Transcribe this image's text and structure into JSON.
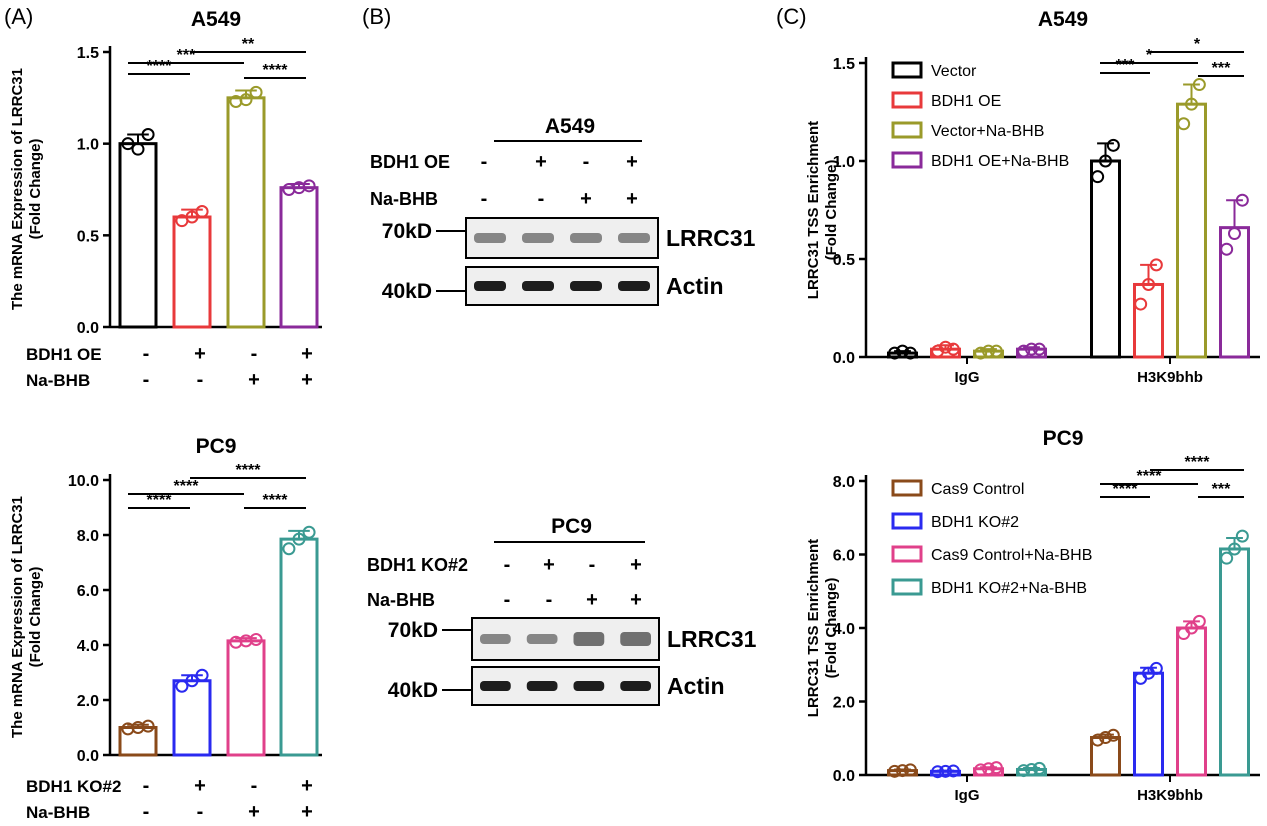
{
  "panel_labels": {
    "a": "(A)",
    "b": "(B)",
    "c": "(C)"
  },
  "chart_data": [
    {
      "id": "A-top",
      "type": "bar",
      "title": "A549",
      "ylabel": "The mRNA Expression of LRRC31 (Fold Change)",
      "ylim": [
        0,
        1.5
      ],
      "yticks": [
        "0.0",
        "0.5",
        "1.0",
        "1.5"
      ],
      "colors": [
        "#000000",
        "#e8393b",
        "#9a9a2a",
        "#8a2a9a"
      ],
      "values": [
        1.0,
        0.6,
        1.25,
        0.76
      ],
      "errors": [
        0.05,
        0.04,
        0.04,
        0.02
      ],
      "points": [
        [
          1.0,
          0.97,
          1.05
        ],
        [
          0.58,
          0.6,
          0.63
        ],
        [
          1.23,
          1.24,
          1.28
        ],
        [
          0.75,
          0.76,
          0.77
        ]
      ],
      "design": [
        {
          "label": "BDH1 OE",
          "signs": [
            "-",
            "+",
            "-",
            "+"
          ]
        },
        {
          "label": "Na-BHB",
          "signs": [
            "-",
            "-",
            "+",
            "+"
          ]
        }
      ],
      "significance": [
        {
          "from": 1,
          "to": 2,
          "label": "****"
        },
        {
          "from": 1,
          "to": 3,
          "label": "***"
        },
        {
          "from": 2,
          "to": 4,
          "label": "**"
        },
        {
          "from": 3,
          "to": 4,
          "label": "****"
        }
      ]
    },
    {
      "id": "A-bottom",
      "type": "bar",
      "title": "PC9",
      "ylabel": "The mRNA Expression of LRRC31 (Fold Change)",
      "ylim": [
        0,
        10
      ],
      "yticks": [
        "0.0",
        "2.0",
        "4.0",
        "6.0",
        "8.0",
        "10.0"
      ],
      "colors": [
        "#8a4a1a",
        "#2a2af0",
        "#e0408a",
        "#3a9a92"
      ],
      "values": [
        1.0,
        2.7,
        4.15,
        7.85
      ],
      "errors": [
        0.1,
        0.2,
        0.1,
        0.3
      ],
      "points": [
        [
          0.95,
          1.0,
          1.05
        ],
        [
          2.5,
          2.7,
          2.9
        ],
        [
          4.1,
          4.15,
          4.2
        ],
        [
          7.5,
          7.85,
          8.1
        ]
      ],
      "design": [
        {
          "label": "BDH1 KO#2",
          "signs": [
            "-",
            "+",
            "-",
            "+"
          ]
        },
        {
          "label": "Na-BHB",
          "signs": [
            "-",
            "-",
            "+",
            "+"
          ]
        }
      ],
      "significance": [
        {
          "from": 1,
          "to": 2,
          "label": "****"
        },
        {
          "from": 1,
          "to": 3,
          "label": "****"
        },
        {
          "from": 2,
          "to": 4,
          "label": "****"
        },
        {
          "from": 3,
          "to": 4,
          "label": "****"
        }
      ]
    },
    {
      "id": "C-top",
      "type": "bar",
      "title": "A549",
      "ylabel": "LRRC31 TSS Enrichment (Fold Change)",
      "ylim": [
        0,
        1.5
      ],
      "yticks": [
        "0.0",
        "0.5",
        "1.0",
        "1.5"
      ],
      "categories": [
        "IgG",
        "H3K9bhb"
      ],
      "colors": [
        "#000000",
        "#e8393b",
        "#9a9a2a",
        "#8a2a9a"
      ],
      "series": [
        {
          "name": "Vector",
          "values": [
            0.02,
            1.0
          ],
          "errors": [
            0.01,
            0.09
          ],
          "points": [
            [
              0.02,
              0.03,
              0.02
            ],
            [
              0.92,
              1.0,
              1.08
            ]
          ]
        },
        {
          "name": "BDH1 OE",
          "values": [
            0.04,
            0.37
          ],
          "errors": [
            0.02,
            0.1
          ],
          "points": [
            [
              0.03,
              0.05,
              0.04
            ],
            [
              0.27,
              0.37,
              0.47
            ]
          ]
        },
        {
          "name": "Vector+Na-BHB",
          "values": [
            0.03,
            1.29
          ],
          "errors": [
            0.01,
            0.1
          ],
          "points": [
            [
              0.02,
              0.03,
              0.03
            ],
            [
              1.19,
              1.29,
              1.39
            ]
          ]
        },
        {
          "name": "BDH1 OE+Na-BHB",
          "values": [
            0.04,
            0.66
          ],
          "errors": [
            0.01,
            0.14
          ],
          "points": [
            [
              0.03,
              0.04,
              0.04
            ],
            [
              0.55,
              0.63,
              0.8
            ]
          ]
        }
      ],
      "significance": [
        {
          "from": 1,
          "to": 2,
          "label": "***"
        },
        {
          "from": 1,
          "to": 3,
          "label": "*"
        },
        {
          "from": 2,
          "to": 4,
          "label": "*"
        },
        {
          "from": 3,
          "to": 4,
          "label": "***"
        }
      ]
    },
    {
      "id": "C-bottom",
      "type": "bar",
      "title": "PC9",
      "ylabel": "LRRC31 TSS Enrichment (Fold Change)",
      "ylim": [
        0,
        8
      ],
      "yticks": [
        "0.0",
        "2.0",
        "4.0",
        "6.0",
        "8.0"
      ],
      "categories": [
        "IgG",
        "H3K9bhb"
      ],
      "colors": [
        "#8a4a1a",
        "#2a2af0",
        "#e0408a",
        "#3a9a92"
      ],
      "series": [
        {
          "name": "Cas9 Control",
          "values": [
            0.12,
            1.02
          ],
          "errors": [
            0.03,
            0.08
          ],
          "points": [
            [
              0.1,
              0.12,
              0.14
            ],
            [
              0.95,
              1.02,
              1.08
            ]
          ]
        },
        {
          "name": "BDH1 KO#2",
          "values": [
            0.1,
            2.77
          ],
          "errors": [
            0.02,
            0.15
          ],
          "points": [
            [
              0.09,
              0.1,
              0.11
            ],
            [
              2.63,
              2.77,
              2.9
            ]
          ]
        },
        {
          "name": "Cas9 Control+Na-BHB",
          "values": [
            0.17,
            4.0
          ],
          "errors": [
            0.04,
            0.18
          ],
          "points": [
            [
              0.14,
              0.17,
              0.2
            ],
            [
              3.85,
              4.0,
              4.18
            ]
          ]
        },
        {
          "name": "BDH1 KO#2+Na-BHB",
          "values": [
            0.15,
            6.15
          ],
          "errors": [
            0.04,
            0.3
          ],
          "points": [
            [
              0.12,
              0.15,
              0.18
            ],
            [
              5.9,
              6.15,
              6.5
            ]
          ]
        }
      ],
      "significance": [
        {
          "from": 1,
          "to": 2,
          "label": "****"
        },
        {
          "from": 1,
          "to": 3,
          "label": "****"
        },
        {
          "from": 2,
          "to": 4,
          "label": "****"
        },
        {
          "from": 3,
          "to": 4,
          "label": "***"
        }
      ]
    }
  ],
  "blots": [
    {
      "id": "B-top",
      "title": "A549",
      "rows": [
        {
          "label": "BDH1 OE",
          "signs": [
            "-",
            "+",
            "-",
            "+"
          ]
        },
        {
          "label": "Na-BHB",
          "signs": [
            "-",
            "-",
            "+",
            "+"
          ]
        }
      ],
      "bands": [
        {
          "marker": "70kD",
          "name": "LRRC31"
        },
        {
          "marker": "40kD",
          "name": "Actin"
        }
      ]
    },
    {
      "id": "B-bottom",
      "title": "PC9",
      "rows": [
        {
          "label": "BDH1 KO#2",
          "signs": [
            "-",
            "+",
            "-",
            "+"
          ]
        },
        {
          "label": "Na-BHB",
          "signs": [
            "-",
            "-",
            "+",
            "+"
          ]
        }
      ],
      "bands": [
        {
          "marker": "70kD",
          "name": "LRRC31"
        },
        {
          "marker": "40kD",
          "name": "Actin"
        }
      ]
    }
  ]
}
